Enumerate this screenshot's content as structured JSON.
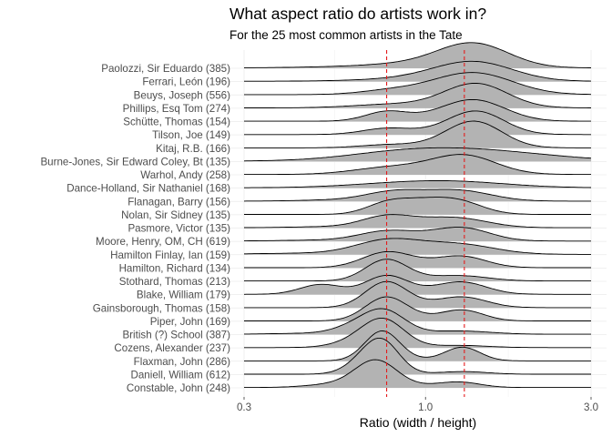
{
  "chart_data": {
    "type": "ridgeline",
    "title": "What aspect ratio do artists work in?",
    "subtitle": "For the 25 most common artists in the Tate",
    "xlabel": "Ratio (width / height)",
    "x_scale": "log10",
    "xlim": [
      0.3,
      3.0
    ],
    "x_ticks": [
      0.3,
      1.0,
      3.0
    ],
    "x_tick_labels": [
      "0.3",
      "1.0",
      "3.0"
    ],
    "reference_lines": [
      0.7727,
      1.2941
    ],
    "reference_line_color": "#e41a1c",
    "fill_color": "#b3b3b3",
    "grid": true,
    "legend": "none",
    "categories": [
      "Paolozzi, Sir Eduardo (385)",
      "Ferrari, León (196)",
      "Beuys, Joseph (556)",
      "Phillips, Esq Tom (274)",
      "Schütte, Thomas (154)",
      "Tilson, Joe (149)",
      "Kitaj, R.B. (166)",
      "Burne-Jones, Sir Edward Coley, Bt (135)",
      "Warhol, Andy (258)",
      "Dance-Holland, Sir Nathaniel (168)",
      "Flanagan, Barry (156)",
      "Nolan, Sir Sidney (135)",
      "Pasmore, Victor (135)",
      "Moore, Henry, OM, CH (619)",
      "Hamilton Finlay, Ian (159)",
      "Hamilton, Richard (134)",
      "Stothard, Thomas (213)",
      "Blake, William (179)",
      "Gainsborough, Thomas (158)",
      "Piper, John (169)",
      "British (?) School (387)",
      "Cozens, Alexander (237)",
      "Flaxman, John (286)",
      "Daniell, William (612)",
      "Constable, John (248)"
    ],
    "densities": [
      {
        "peaks": [
          [
            1.38,
            1.0,
            0.1
          ],
          [
            1.05,
            0.18,
            0.15
          ],
          [
            0.75,
            0.06,
            0.2
          ]
        ]
      },
      {
        "peaks": [
          [
            1.4,
            0.8,
            0.11
          ],
          [
            1.08,
            0.15,
            0.12
          ],
          [
            0.78,
            0.05,
            0.15
          ]
        ]
      },
      {
        "peaks": [
          [
            1.4,
            0.9,
            0.11
          ],
          [
            1.05,
            0.18,
            0.12
          ],
          [
            0.77,
            0.12,
            0.08
          ]
        ]
      },
      {
        "peaks": [
          [
            1.4,
            1.05,
            0.09
          ],
          [
            1.0,
            0.12,
            0.15
          ],
          [
            0.75,
            0.08,
            0.1
          ]
        ]
      },
      {
        "peaks": [
          [
            1.38,
            0.95,
            0.09
          ],
          [
            0.77,
            0.4,
            0.06
          ],
          [
            1.0,
            0.1,
            0.1
          ]
        ]
      },
      {
        "peaks": [
          [
            1.4,
            1.05,
            0.08
          ],
          [
            0.77,
            0.25,
            0.07
          ],
          [
            1.0,
            0.08,
            0.1
          ]
        ]
      },
      {
        "peaks": [
          [
            1.38,
            1.2,
            0.08
          ],
          [
            0.77,
            0.12,
            0.08
          ],
          [
            1.0,
            0.06,
            0.1
          ]
        ]
      },
      {
        "peaks": [
          [
            1.35,
            0.45,
            0.22
          ],
          [
            0.8,
            0.15,
            0.15
          ],
          [
            1.05,
            0.1,
            0.2
          ]
        ]
      },
      {
        "peaks": [
          [
            1.3,
            0.75,
            0.09
          ],
          [
            0.77,
            0.2,
            0.1
          ],
          [
            1.0,
            0.2,
            0.14
          ]
        ]
      },
      {
        "peaks": [
          [
            1.25,
            0.2,
            0.15
          ],
          [
            0.8,
            0.12,
            0.15
          ],
          [
            1.05,
            0.06,
            0.2
          ]
        ]
      },
      {
        "peaks": [
          [
            0.8,
            0.35,
            0.08
          ],
          [
            1.28,
            0.4,
            0.09
          ],
          [
            1.0,
            0.16,
            0.1
          ],
          [
            0.55,
            0.05,
            0.1
          ]
        ]
      },
      {
        "peaks": [
          [
            0.77,
            0.45,
            0.06
          ],
          [
            0.97,
            0.5,
            0.07
          ],
          [
            1.25,
            0.55,
            0.07
          ]
        ]
      },
      {
        "peaks": [
          [
            0.77,
            0.45,
            0.07
          ],
          [
            1.25,
            0.35,
            0.09
          ],
          [
            1.0,
            0.18,
            0.1
          ],
          [
            0.55,
            0.05,
            0.12
          ]
        ]
      },
      {
        "peaks": [
          [
            0.77,
            0.4,
            0.08
          ],
          [
            1.28,
            0.55,
            0.08
          ],
          [
            1.0,
            0.12,
            0.1
          ],
          [
            0.5,
            0.04,
            0.12
          ]
        ]
      },
      {
        "peaks": [
          [
            0.77,
            0.55,
            0.09
          ],
          [
            1.28,
            0.35,
            0.1
          ],
          [
            1.0,
            0.18,
            0.12
          ],
          [
            0.45,
            0.05,
            0.15
          ]
        ]
      },
      {
        "peaks": [
          [
            0.77,
            0.65,
            0.07
          ],
          [
            1.28,
            0.45,
            0.07
          ],
          [
            1.0,
            0.15,
            0.1
          ]
        ]
      },
      {
        "peaks": [
          [
            0.77,
            0.95,
            0.06
          ],
          [
            1.28,
            0.2,
            0.08
          ],
          [
            1.0,
            0.08,
            0.1
          ]
        ]
      },
      {
        "peaks": [
          [
            0.77,
            0.8,
            0.06
          ],
          [
            0.5,
            0.45,
            0.06
          ],
          [
            1.28,
            0.5,
            0.07
          ],
          [
            1.0,
            0.12,
            0.1
          ]
        ]
      },
      {
        "peaks": [
          [
            0.77,
            1.15,
            0.06
          ],
          [
            1.28,
            0.45,
            0.07
          ],
          [
            1.0,
            0.08,
            0.1
          ]
        ]
      },
      {
        "peaks": [
          [
            0.77,
            1.05,
            0.06
          ],
          [
            1.28,
            0.45,
            0.06
          ],
          [
            1.0,
            0.1,
            0.1
          ]
        ]
      },
      {
        "peaks": [
          [
            0.76,
            1.05,
            0.06
          ],
          [
            0.62,
            0.3,
            0.06
          ],
          [
            1.25,
            0.15,
            0.09
          ],
          [
            0.45,
            0.04,
            0.1
          ]
        ]
      },
      {
        "peaks": [
          [
            0.76,
            1.15,
            0.06
          ],
          [
            0.65,
            0.3,
            0.07
          ],
          [
            1.25,
            0.1,
            0.08
          ]
        ]
      },
      {
        "peaks": [
          [
            0.75,
            1.35,
            0.05
          ],
          [
            1.28,
            0.6,
            0.05
          ],
          [
            1.0,
            0.05,
            0.1
          ]
        ]
      },
      {
        "peaks": [
          [
            0.75,
            1.45,
            0.05
          ],
          [
            0.65,
            0.4,
            0.05
          ],
          [
            1.28,
            0.12,
            0.07
          ]
        ]
      },
      {
        "peaks": [
          [
            0.72,
            1.2,
            0.06
          ],
          [
            1.25,
            0.22,
            0.06
          ],
          [
            0.55,
            0.15,
            0.08
          ],
          [
            1.0,
            0.06,
            0.1
          ]
        ]
      }
    ]
  }
}
